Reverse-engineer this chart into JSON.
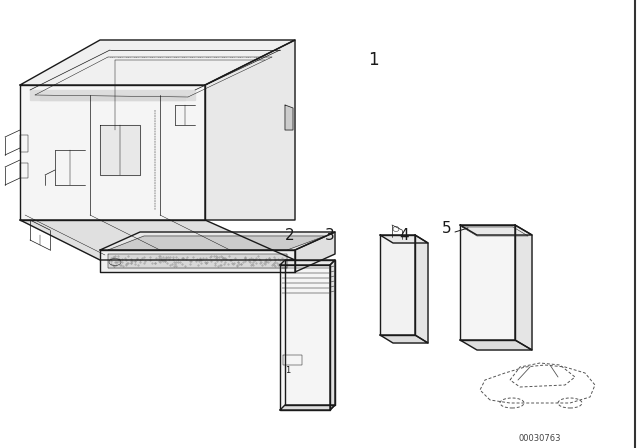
{
  "background_color": "#ffffff",
  "line_color": "#1a1a1a",
  "watermark": "00030763",
  "fig_width": 6.4,
  "fig_height": 4.48,
  "dpi": 100,
  "lw_main": 1.0,
  "lw_detail": 0.5,
  "lw_fine": 0.35,
  "gray_fill": "#e8e8e8",
  "stipple_color": "#aaaaaa"
}
